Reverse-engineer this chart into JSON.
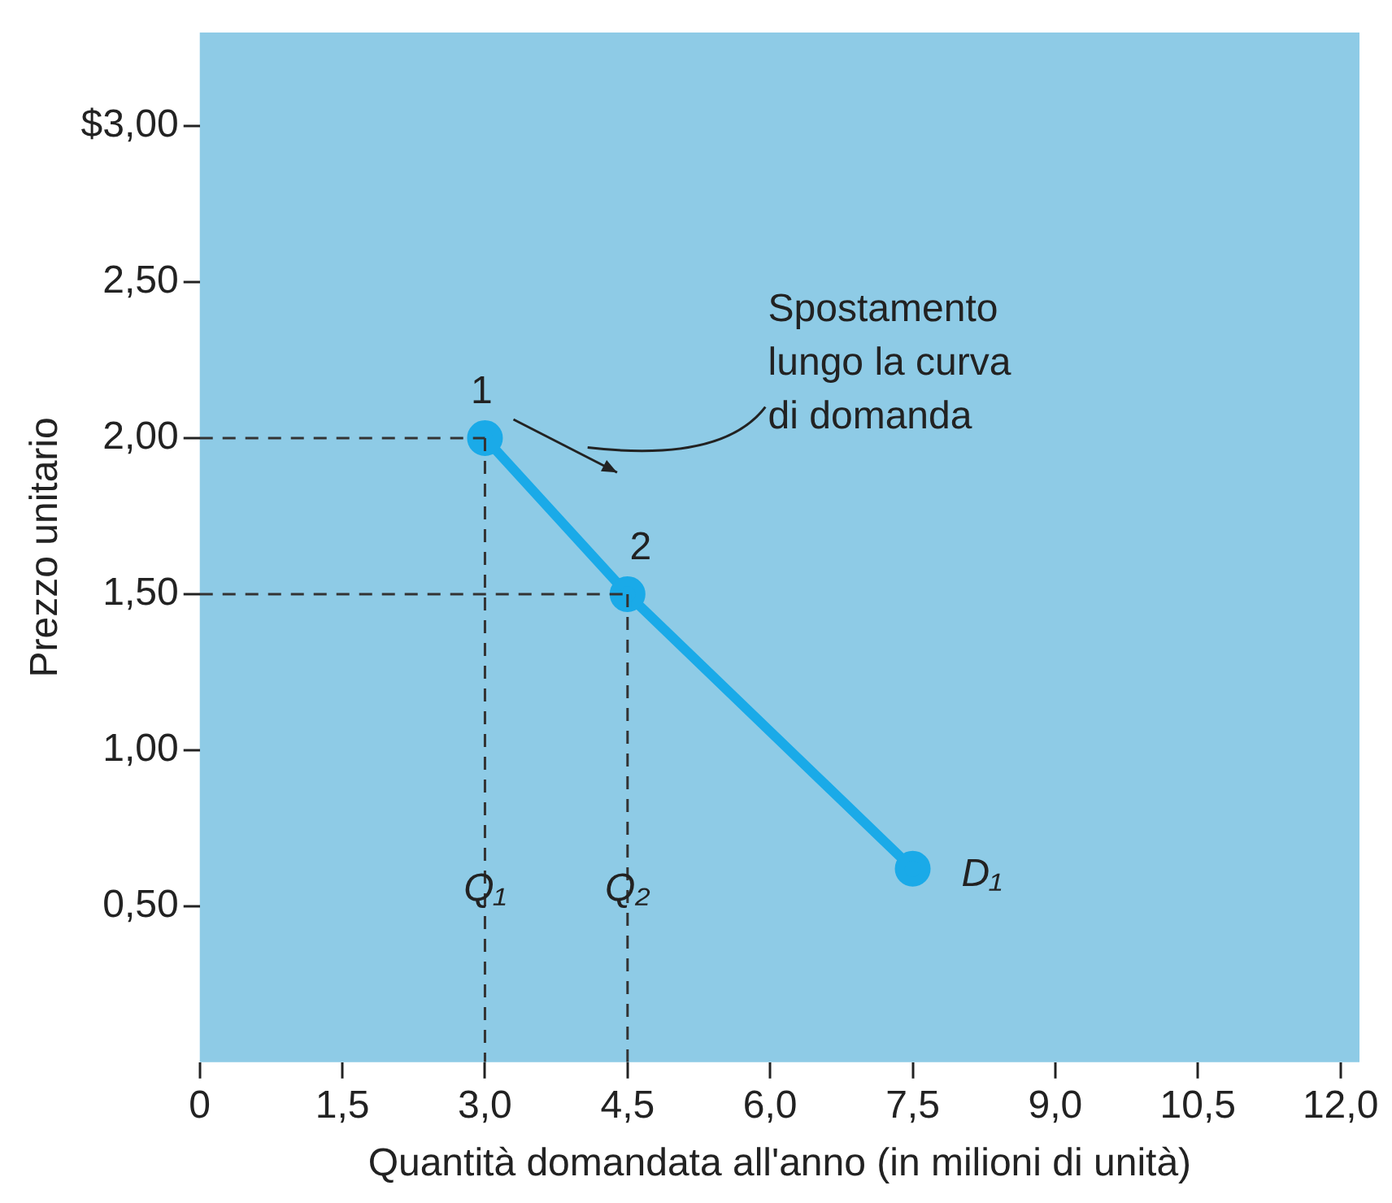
{
  "chart_data": {
    "type": "line",
    "xlabel": "Quantità domandata all'anno (in milioni di unità)",
    "ylabel": "Prezzo unitario",
    "x": [
      3.0,
      4.5,
      7.5
    ],
    "series": [
      {
        "color": "#1aaae8",
        "values": [
          2.0,
          1.5,
          0.62
        ],
        "marker": "circle",
        "line_style": "solid"
      },
      {
        "color": "#333333",
        "x": [
          0,
          3.0
        ],
        "values": [
          2.0,
          2.0
        ],
        "marker": "none",
        "line_style": "dashed"
      },
      {
        "color": "#333333",
        "x": [
          3.0,
          3.0
        ],
        "values": [
          2.0,
          0
        ],
        "marker": "none",
        "line_style": "dashed"
      },
      {
        "color": "#333333",
        "x": [
          0,
          4.5
        ],
        "values": [
          1.5,
          1.5
        ],
        "marker": "none",
        "line_style": "dashed"
      },
      {
        "color": "#333333",
        "x": [
          4.5,
          4.5
        ],
        "values": [
          1.5,
          0
        ],
        "marker": "none",
        "line_style": "dashed"
      }
    ],
    "xlim": [
      0,
      12.2
    ],
    "xticks": [
      0,
      {
        "value": 1.5,
        "label": "1,5"
      },
      {
        "value": 3.0,
        "label": "3,0"
      },
      {
        "value": 4.5,
        "label": "4,5"
      },
      {
        "value": 6.0,
        "label": "6,0"
      },
      {
        "value": 7.5,
        "label": "7,5"
      },
      {
        "value": 9.0,
        "label": "9,0"
      },
      {
        "value": 10.5,
        "label": "10,5"
      },
      {
        "value": 12.0,
        "label": "12,0"
      }
    ],
    "ylim": [
      0,
      3.3
    ],
    "yticks": [
      {
        "value": 0.5,
        "label": "0,50"
      },
      {
        "value": 1.0,
        "label": "1,00"
      },
      {
        "value": 1.5,
        "label": "1,50"
      },
      {
        "value": 2.0,
        "label": "2,00"
      },
      {
        "value": 2.5,
        "label": "2,50"
      },
      {
        "value": 3.0,
        "label": "$3,00"
      }
    ],
    "grid": false,
    "legend": false,
    "annotations": [
      {
        "text": "1",
        "x": 3.0,
        "y": 2.0
      },
      {
        "text": "2",
        "x": 4.5,
        "y": 1.5
      },
      {
        "text": "Q₁",
        "x": 3.0,
        "y": 0.5
      },
      {
        "text": "Q₂",
        "x": 4.5,
        "y": 0.5
      },
      {
        "text": "D₁",
        "x": 7.5,
        "y": 0.62
      },
      "Spostamento\nlungo la curva\ndi domanda"
    ]
  }
}
